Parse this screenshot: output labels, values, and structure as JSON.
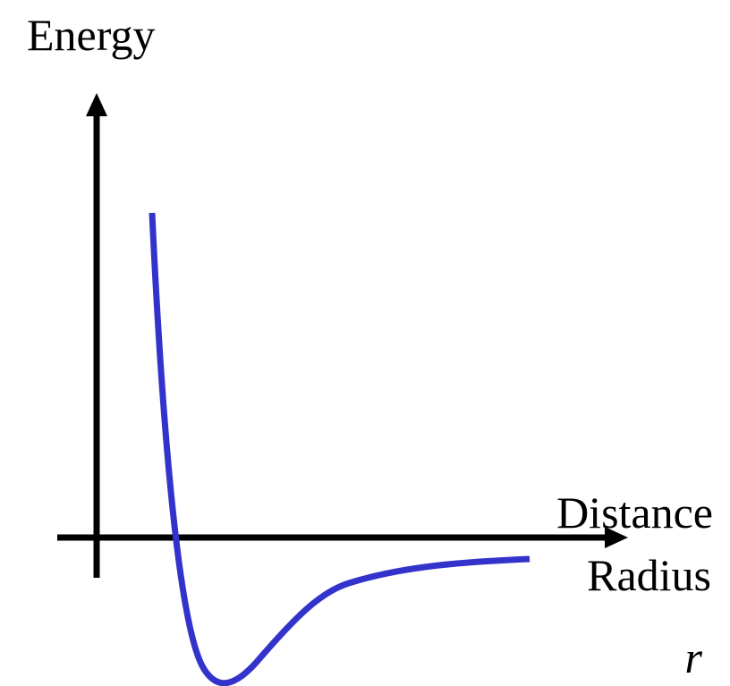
{
  "y_axis": {
    "label": "Energy"
  },
  "x_axis": {
    "label": "Distance",
    "label_2": "Radius",
    "symbol": "r"
  }
}
